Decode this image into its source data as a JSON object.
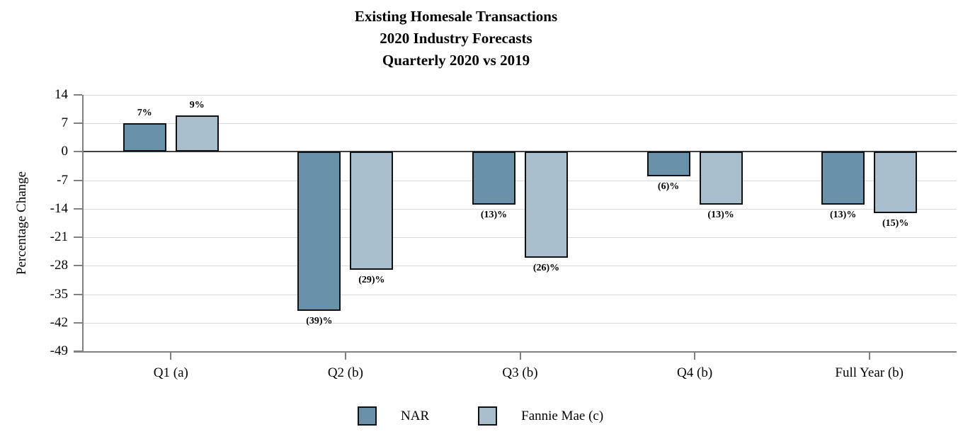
{
  "chart_data": {
    "type": "bar",
    "title": "Existing Homesale Transactions 2020 Industry Forecasts Quarterly 2020 vs 2019",
    "title_lines": [
      "Existing Homesale Transactions",
      "2020 Industry Forecasts",
      "Quarterly 2020 vs 2019"
    ],
    "ylabel": "Percentage Change",
    "xlabel": "",
    "categories": [
      "Q1 (a)",
      "Q2 (b)",
      "Q3 (b)",
      "Q4 (b)",
      "Full Year (b)"
    ],
    "series": [
      {
        "name": "NAR",
        "color": "#6991aa",
        "values": [
          7,
          -39,
          -13,
          -6,
          -13
        ],
        "labels": [
          "7%",
          "(39)%",
          "(13)%",
          "(6)%",
          "(13)%"
        ]
      },
      {
        "name": "Fannie Mae (c)",
        "color": "#a8becd",
        "values": [
          9,
          -29,
          -26,
          -13,
          -15
        ],
        "labels": [
          "9%",
          "(29)%",
          "(26)%",
          "(13)%",
          "(15)%"
        ]
      }
    ],
    "ylim": [
      -49,
      14
    ],
    "yticks": [
      14,
      7,
      0,
      -7,
      -14,
      -21,
      -28,
      -35,
      -42,
      -49
    ],
    "grid": true,
    "legend_position": "bottom",
    "colors": {
      "grid": "#d9d9d9",
      "zero_line": "#404040",
      "axis": "#7f7f7f",
      "bar_border": "#111111",
      "text": "#000000"
    }
  }
}
